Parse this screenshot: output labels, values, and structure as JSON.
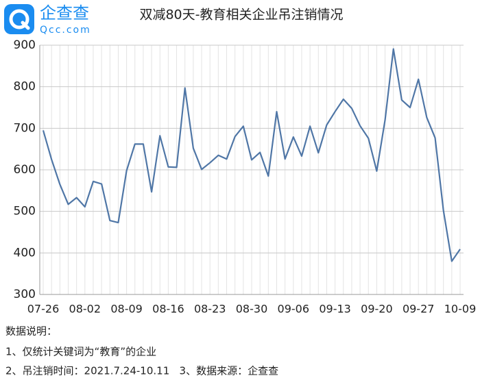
{
  "chart_data": {
    "type": "line",
    "title": "双减80天-教育相关企业吊注销情况",
    "categories": [
      "07-26",
      null,
      null,
      null,
      null,
      "08-02",
      null,
      null,
      null,
      null,
      "08-09",
      null,
      null,
      null,
      null,
      "08-16",
      null,
      null,
      null,
      null,
      "08-23",
      null,
      null,
      null,
      null,
      "08-30",
      null,
      null,
      null,
      null,
      "09-06",
      null,
      null,
      null,
      null,
      "09-13",
      null,
      null,
      null,
      null,
      "09-20",
      null,
      null,
      null,
      null,
      "09-27",
      null,
      null,
      null,
      null,
      "10-09"
    ],
    "series": [
      {
        "color": "#4f76a6",
        "values": [
          695,
          625,
          565,
          517,
          533,
          511,
          572,
          566,
          478,
          473,
          598,
          662,
          662,
          547,
          682,
          607,
          606,
          797,
          652,
          601,
          617,
          635,
          626,
          680,
          705,
          624,
          642,
          585,
          740,
          626,
          679,
          633,
          705,
          641,
          708,
          740,
          770,
          748,
          706,
          676,
          597,
          720,
          891,
          768,
          750,
          818,
          726,
          677,
          502,
          380,
          409
        ]
      }
    ],
    "ylim": [
      300,
      900
    ],
    "yticks": [
      300,
      400,
      500,
      600,
      700,
      800,
      900
    ],
    "grid": true
  },
  "logo": {
    "name": "企查查",
    "url": "Qcc.com"
  },
  "notes": [
    "数据说明：",
    "1、仅统计关键词为“教育”的企业",
    "2、吊注销时间：2021.7.24-10.11   3、数据来源：企查查"
  ]
}
